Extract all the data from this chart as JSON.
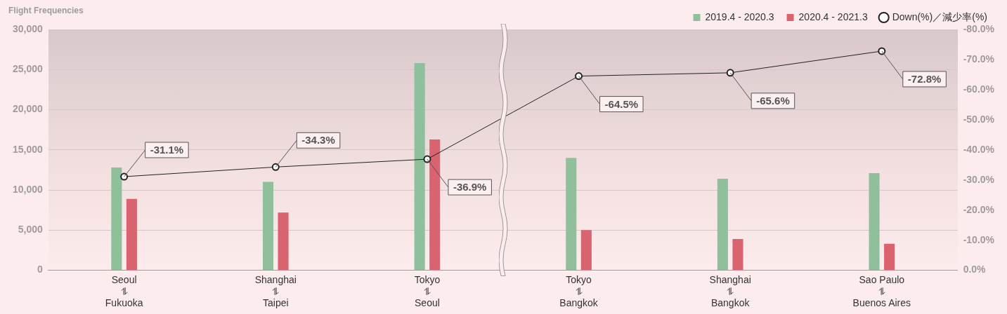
{
  "chart_data": {
    "type": "bar",
    "title": "Flight Frequencies",
    "categories": [
      "Seoul\n⥮\nFukuoka",
      "Shanghai\n⥮\nTaipei",
      "Tokyo\n⥮\nSeoul",
      "Tokyo\n⥮\nBangkok",
      "Shanghai\n⥮\nBangkok",
      "Sao Paulo\n⥮\nBuenos Aires"
    ],
    "series": [
      {
        "name": "2019.4 - 2020.3",
        "color": "#8fbf9b",
        "values": [
          12800,
          11000,
          25800,
          14000,
          11400,
          12100
        ]
      },
      {
        "name": "2020.4 - 2021.3",
        "color": "#d96470",
        "values": [
          8900,
          7200,
          16300,
          5000,
          3900,
          3300
        ]
      },
      {
        "name": "Down(%)／減少率(%)",
        "type": "line",
        "axis": "y2",
        "color": "#222222",
        "values": [
          -31.1,
          -34.3,
          -36.9,
          -64.5,
          -65.6,
          -72.8
        ],
        "value_labels": [
          "-31.1%",
          "-34.3%",
          "-36.9%",
          "-64.5%",
          "-65.6%",
          "-72.8%"
        ]
      }
    ],
    "ylim": [
      0,
      30000
    ],
    "yticks": [
      0,
      {
        "value": 5000,
        "label": "5,000"
      },
      {
        "value": 10000,
        "label": "10,000"
      },
      {
        "value": 15000,
        "label": "15,000"
      },
      {
        "value": 20000,
        "label": "20,000"
      },
      {
        "value": 25000,
        "label": "25,000"
      },
      {
        "value": 30000,
        "label": "30,000"
      }
    ],
    "y2lim": [
      0,
      -80
    ],
    "y2ticks": [
      {
        "value": 0,
        "label": "0.0%"
      },
      {
        "value": -10,
        "label": "-10.0%"
      },
      {
        "value": -20,
        "label": "-20.0%"
      },
      {
        "value": -30,
        "label": "-30.0%"
      },
      {
        "value": -40,
        "label": "-40.0%"
      },
      {
        "value": -50,
        "label": "-50.0%"
      },
      {
        "value": -60,
        "label": "-60.0%"
      },
      {
        "value": -70,
        "label": "-70.0%"
      },
      {
        "value": -80,
        "label": "-80.0%"
      }
    ],
    "grid": "y",
    "legend": "top right",
    "marker": "circle",
    "line_style": "solid"
  }
}
